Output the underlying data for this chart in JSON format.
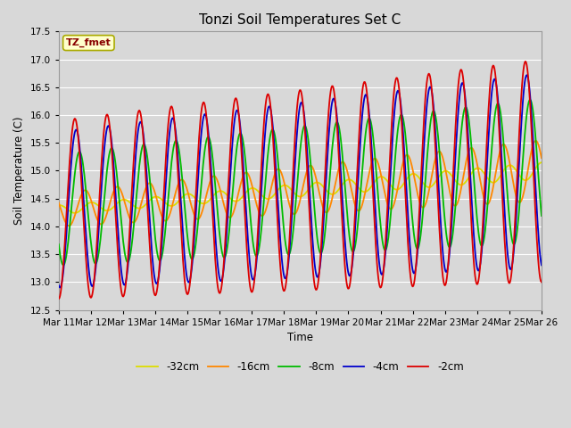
{
  "title": "Tonzi Soil Temperatures Set C",
  "xlabel": "Time",
  "ylabel": "Soil Temperature (C)",
  "ylim": [
    12.5,
    17.5
  ],
  "yticks": [
    12.5,
    13.0,
    13.5,
    14.0,
    14.5,
    15.0,
    15.5,
    16.0,
    16.5,
    17.0,
    17.5
  ],
  "x_labels": [
    "Mar 11",
    "Mar 12",
    "Mar 13",
    "Mar 14",
    "Mar 15",
    "Mar 16",
    "Mar 17",
    "Mar 18",
    "Mar 19",
    "Mar 20",
    "Mar 21",
    "Mar 22",
    "Mar 23",
    "Mar 24",
    "Mar 25",
    "Mar 26"
  ],
  "series_colors": [
    "#dd0000",
    "#0000cc",
    "#00bb00",
    "#ff8800",
    "#dddd00"
  ],
  "series_labels": [
    "-2cm",
    "-4cm",
    "-8cm",
    "-16cm",
    "-32cm"
  ],
  "legend_label": "TZ_fmet",
  "bg_color": "#d8d8d8",
  "plot_bg_color": "#d8d8d8",
  "grid_color": "#ffffff",
  "linewidth": 1.3,
  "figsize": [
    6.4,
    4.8
  ],
  "dpi": 100
}
